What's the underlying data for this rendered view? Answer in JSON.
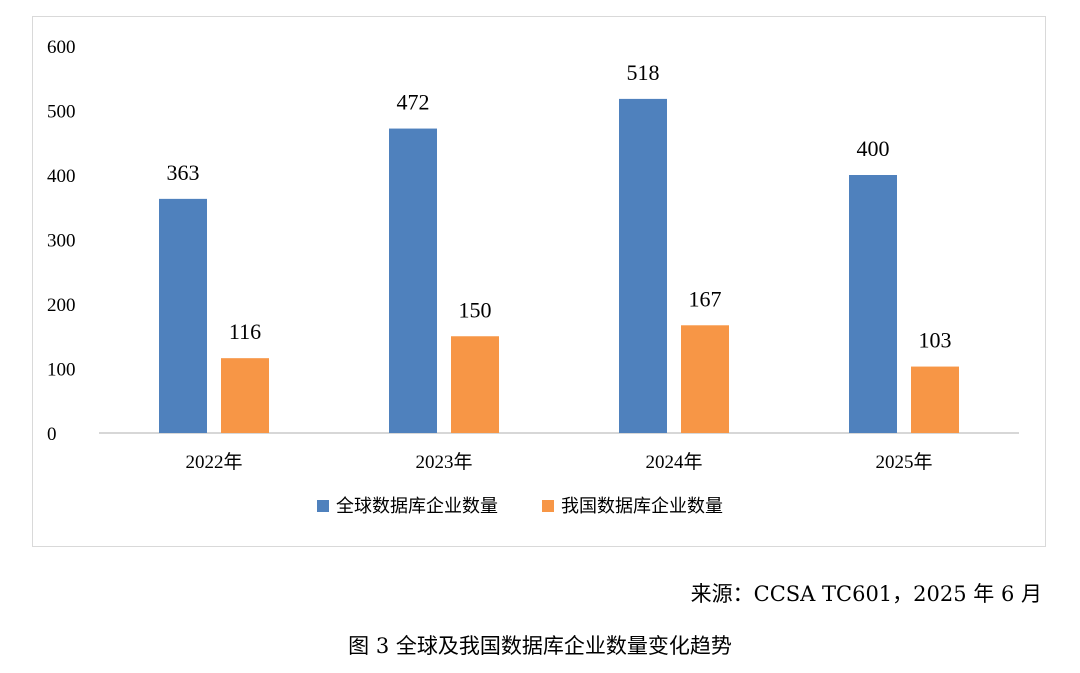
{
  "colors": {
    "series_global": "#4f81bd",
    "series_china": "#f79646",
    "axis": "#bfbfbf",
    "frame": "#d9d9d9"
  },
  "chart_data": {
    "type": "bar",
    "title": "",
    "xlabel": "",
    "ylabel": "",
    "categories": [
      "2022年",
      "2023年",
      "2024年",
      "2025年"
    ],
    "series": [
      {
        "name": "全球数据库企业数量",
        "values": [
          363,
          472,
          518,
          400
        ]
      },
      {
        "name": "我国数据库企业数量",
        "values": [
          116,
          150,
          167,
          103
        ]
      }
    ],
    "ylim": [
      0,
      600
    ],
    "yticks": [
      0,
      100,
      200,
      300,
      400,
      500,
      600
    ],
    "grid": false,
    "legend": "bottom",
    "data_labels": true
  },
  "source_note": "来源：CCSA TC601，2025 年 6 月",
  "figure_caption": "图  3  全球及我国数据库企业数量变化趋势"
}
